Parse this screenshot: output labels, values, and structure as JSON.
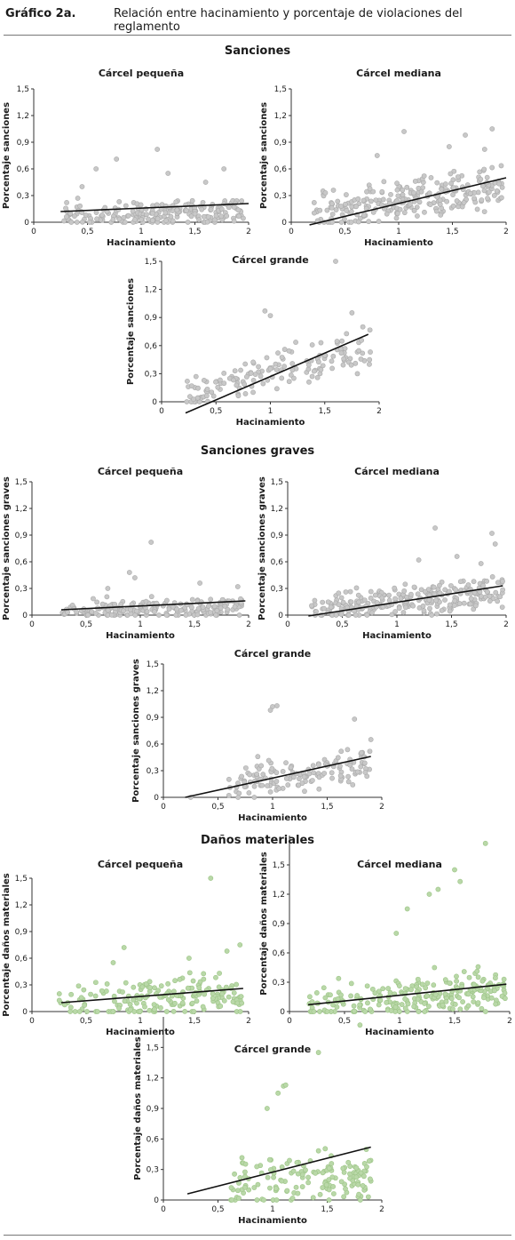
{
  "figure": {
    "label": "Gráfico 2a.",
    "title": "Relación entre hacinamiento y porcentaje de violaciones del reglamento"
  },
  "sections": [
    {
      "title": "Sanciones"
    },
    {
      "title": "Sanciones graves"
    },
    {
      "title": "Daños materiales"
    }
  ],
  "colors": {
    "gray_points": "#c8c8c8",
    "green_points": "#b9d8a8",
    "line": "#111111",
    "axis": "#333333"
  },
  "chart_data": [
    {
      "type": "scatter",
      "title": "Cárcel pequeña",
      "xlabel": "Hacinamiento",
      "ylabel": "Porcentaje sanciones",
      "xlim": [
        0,
        2
      ],
      "ylim": [
        0,
        1.5
      ],
      "x_ticks": [
        "0",
        "0,5",
        "1",
        "1,5",
        "2"
      ],
      "y_ticks": [
        "0",
        "0,3",
        "0,6",
        "0,9",
        "1,2",
        "1,5"
      ],
      "y_tick_values": [
        0,
        0.3,
        0.6,
        0.9,
        1.2,
        1.5
      ],
      "point_color": "gray",
      "point_count": 200,
      "point_seed": 11,
      "x_range": [
        0.25,
        1.95
      ],
      "y_center": [
        0.05,
        0.12
      ],
      "spread": 0.09,
      "points": [
        [
          1.15,
          0.82
        ],
        [
          0.77,
          0.71
        ],
        [
          0.58,
          0.6
        ],
        [
          1.77,
          0.6
        ],
        [
          1.6,
          0.45
        ],
        [
          1.25,
          0.55
        ],
        [
          0.45,
          0.4
        ]
      ],
      "trend": [
        [
          0.25,
          0.12
        ],
        [
          2.0,
          0.21
        ]
      ]
    },
    {
      "type": "scatter",
      "title": "Cárcel mediana",
      "xlabel": "Hacinamiento",
      "ylabel": "Porcentaje sanciones",
      "xlim": [
        0,
        2
      ],
      "ylim": [
        0,
        1.5
      ],
      "x_ticks": [
        "0",
        "0,5",
        "1",
        "1,5",
        "2"
      ],
      "y_ticks": [
        "0",
        "0,3",
        "0,6",
        "0,9",
        "1,2",
        "1,5"
      ],
      "y_tick_values": [
        0,
        0.3,
        0.6,
        0.9,
        1.2,
        1.5
      ],
      "point_color": "gray",
      "point_count": 260,
      "point_seed": 23,
      "x_range": [
        0.2,
        1.97
      ],
      "y_center": [
        0.08,
        0.4
      ],
      "spread": 0.14,
      "points": [
        [
          1.05,
          1.02
        ],
        [
          1.87,
          1.05
        ],
        [
          1.62,
          0.98
        ],
        [
          0.8,
          0.75
        ],
        [
          1.47,
          0.85
        ],
        [
          1.8,
          0.82
        ]
      ],
      "trend": [
        [
          0.17,
          -0.03
        ],
        [
          2.0,
          0.5
        ]
      ]
    },
    {
      "type": "scatter",
      "title": "Cárcel grande",
      "xlabel": "Hacinamiento",
      "ylabel": "Porcentaje sanciones",
      "xlim": [
        0,
        2
      ],
      "ylim": [
        0,
        1.5
      ],
      "x_ticks": [
        "0",
        "0,5",
        "1",
        "1,5",
        "2"
      ],
      "y_ticks": [
        "0",
        "0,3",
        "0,6",
        "0,9",
        "1,2",
        "1,5"
      ],
      "y_tick_values": [
        0,
        0.3,
        0.6,
        0.9,
        1.2,
        1.5
      ],
      "point_color": "gray",
      "point_count": 150,
      "point_seed": 37,
      "x_range": [
        0.2,
        1.95
      ],
      "y_center": [
        0.0,
        0.6
      ],
      "spread": 0.12,
      "points": [
        [
          1.6,
          1.55
        ],
        [
          0.95,
          0.97
        ],
        [
          1.0,
          0.92
        ],
        [
          1.75,
          0.95
        ],
        [
          1.85,
          0.8
        ],
        [
          1.8,
          0.3
        ]
      ],
      "trend": [
        [
          0.22,
          -0.12
        ],
        [
          1.9,
          0.72
        ]
      ]
    },
    {
      "type": "scatter",
      "title": "Cárcel pequeña",
      "xlabel": "Hacinamiento",
      "ylabel": "Porcentaje sanciones graves",
      "xlim": [
        0,
        2
      ],
      "ylim": [
        0,
        1.5
      ],
      "x_ticks": [
        "0",
        "0,5",
        "1",
        "1,5",
        "2"
      ],
      "y_ticks": [
        "0",
        "0,3",
        "0,6",
        "0,9",
        "1,2",
        "1,5"
      ],
      "y_tick_values": [
        0,
        0.3,
        0.6,
        0.9,
        1.2,
        1.5
      ],
      "point_color": "gray",
      "point_count": 190,
      "point_seed": 41,
      "x_range": [
        0.25,
        1.95
      ],
      "y_center": [
        0.03,
        0.1
      ],
      "spread": 0.07,
      "points": [
        [
          1.1,
          0.82
        ],
        [
          0.9,
          0.48
        ],
        [
          0.95,
          0.42
        ],
        [
          1.55,
          0.36
        ],
        [
          1.9,
          0.32
        ],
        [
          0.7,
          0.3
        ]
      ],
      "trend": [
        [
          0.27,
          0.06
        ],
        [
          1.97,
          0.16
        ]
      ]
    },
    {
      "type": "scatter",
      "title": "Cárcel mediana",
      "xlabel": "Hacinamiento",
      "ylabel": "Porcentaje sanciones graves",
      "xlim": [
        0,
        2
      ],
      "ylim": [
        0,
        1.5
      ],
      "x_ticks": [
        "0",
        "0,5",
        "1",
        "1,5",
        "2"
      ],
      "y_ticks": [
        "0",
        "0,3",
        "0,6",
        "0,9",
        "1,2",
        "1,5"
      ],
      "y_tick_values": [
        0,
        0.3,
        0.6,
        0.9,
        1.2,
        1.5
      ],
      "point_color": "gray",
      "point_count": 260,
      "point_seed": 53,
      "x_range": [
        0.2,
        1.97
      ],
      "y_center": [
        0.04,
        0.28
      ],
      "spread": 0.11,
      "points": [
        [
          1.35,
          0.98
        ],
        [
          1.87,
          0.92
        ],
        [
          1.9,
          0.8
        ],
        [
          1.55,
          0.66
        ],
        [
          1.2,
          0.62
        ],
        [
          1.77,
          0.58
        ]
      ],
      "trend": [
        [
          0.19,
          -0.01
        ],
        [
          1.97,
          0.33
        ]
      ]
    },
    {
      "type": "scatter",
      "title": "Cárcel grande",
      "xlabel": "Hacinamiento",
      "ylabel": "Porcentaje sanciones graves",
      "xlim": [
        0,
        2
      ],
      "ylim": [
        0,
        1.5
      ],
      "x_ticks": [
        "0",
        "0,5",
        "1",
        "1,5",
        "2"
      ],
      "y_ticks": [
        "0",
        "0,3",
        "0,6",
        "0,9",
        "1,2",
        "1,5"
      ],
      "y_tick_values": [
        0,
        0.3,
        0.6,
        0.9,
        1.2,
        1.5
      ],
      "point_color": "gray",
      "point_count": 140,
      "point_seed": 67,
      "x_range": [
        0.6,
        1.9
      ],
      "y_center": [
        0.05,
        0.4
      ],
      "spread": 0.12,
      "points": [
        [
          1.0,
          1.02
        ],
        [
          0.98,
          0.98
        ],
        [
          1.04,
          1.03
        ],
        [
          1.75,
          0.88
        ],
        [
          1.9,
          0.65
        ],
        [
          0.25,
          0.0
        ]
      ],
      "trend": [
        [
          0.2,
          0.0
        ],
        [
          1.9,
          0.46
        ]
      ]
    },
    {
      "type": "scatter",
      "title": "Cárcel pequeña",
      "xlabel": "Hacinamiento",
      "ylabel": "Porcentaje daños materiales",
      "xlim": [
        0,
        2
      ],
      "ylim": [
        0,
        1.5
      ],
      "x_ticks": [
        "0",
        "0,5",
        "1",
        "1,5",
        "2"
      ],
      "y_ticks": [
        "0",
        "0,3",
        "0,6",
        "0,9",
        "1,2",
        "1,5"
      ],
      "y_tick_values": [
        0,
        0.3,
        0.6,
        0.9,
        1.2,
        1.5
      ],
      "point_color": "green",
      "point_count": 180,
      "point_seed": 71,
      "x_range": [
        0.25,
        1.95
      ],
      "y_center": [
        0.08,
        0.2
      ],
      "spread": 0.13,
      "points": [
        [
          1.65,
          1.5
        ],
        [
          0.85,
          0.72
        ],
        [
          1.92,
          0.75
        ],
        [
          1.8,
          0.68
        ],
        [
          1.45,
          0.6
        ],
        [
          0.75,
          0.55
        ]
      ],
      "trend": [
        [
          0.27,
          0.1
        ],
        [
          1.95,
          0.26
        ]
      ]
    },
    {
      "type": "scatter",
      "title": "Cárcel mediana",
      "xlabel": "Hacinamiento",
      "ylabel": "Porcentaje daños materiales",
      "xlim": [
        0,
        2
      ],
      "ylim": [
        0,
        1.8
      ],
      "x_ticks": [
        "0",
        "0,5",
        "1",
        "1,5",
        "2"
      ],
      "y_ticks": [
        "0",
        "0,3",
        "0,6",
        "0,9",
        "1,2",
        "1,5"
      ],
      "y_tick_values": [
        0,
        0.3,
        0.6,
        0.9,
        1.2,
        1.5
      ],
      "point_color": "green",
      "point_count": 240,
      "point_seed": 83,
      "x_range": [
        0.15,
        1.97
      ],
      "y_center": [
        0.06,
        0.22
      ],
      "spread": 0.13,
      "points": [
        [
          1.78,
          1.72
        ],
        [
          1.55,
          1.33
        ],
        [
          1.5,
          1.45
        ],
        [
          1.35,
          1.25
        ],
        [
          1.27,
          1.2
        ],
        [
          1.07,
          1.05
        ],
        [
          0.97,
          0.8
        ]
      ],
      "trend": [
        [
          0.17,
          0.07
        ],
        [
          1.97,
          0.28
        ]
      ]
    },
    {
      "type": "scatter",
      "title": "Cárcel grande",
      "xlabel": "Hacinamiento",
      "ylabel": "Porcentaje daños materiales",
      "xlim": [
        0,
        2
      ],
      "ylim": [
        0,
        1.8
      ],
      "x_ticks": [
        "0",
        "0,5",
        "1",
        "1,5",
        "2"
      ],
      "y_ticks": [
        "0",
        "0,3",
        "0,6",
        "0,9",
        "1,2",
        "1,5"
      ],
      "y_tick_values": [
        0,
        0.3,
        0.6,
        0.9,
        1.2,
        1.5
      ],
      "point_color": "green",
      "point_count": 150,
      "point_seed": 97,
      "x_range": [
        0.6,
        1.9
      ],
      "y_center": [
        0.1,
        0.25
      ],
      "spread": 0.15,
      "points": [
        [
          1.8,
          1.72
        ],
        [
          1.42,
          1.45
        ],
        [
          1.1,
          1.12
        ],
        [
          1.12,
          1.13
        ],
        [
          1.05,
          1.05
        ],
        [
          0.95,
          0.9
        ]
      ],
      "trend": [
        [
          0.22,
          0.06
        ],
        [
          1.9,
          0.52
        ]
      ]
    }
  ]
}
